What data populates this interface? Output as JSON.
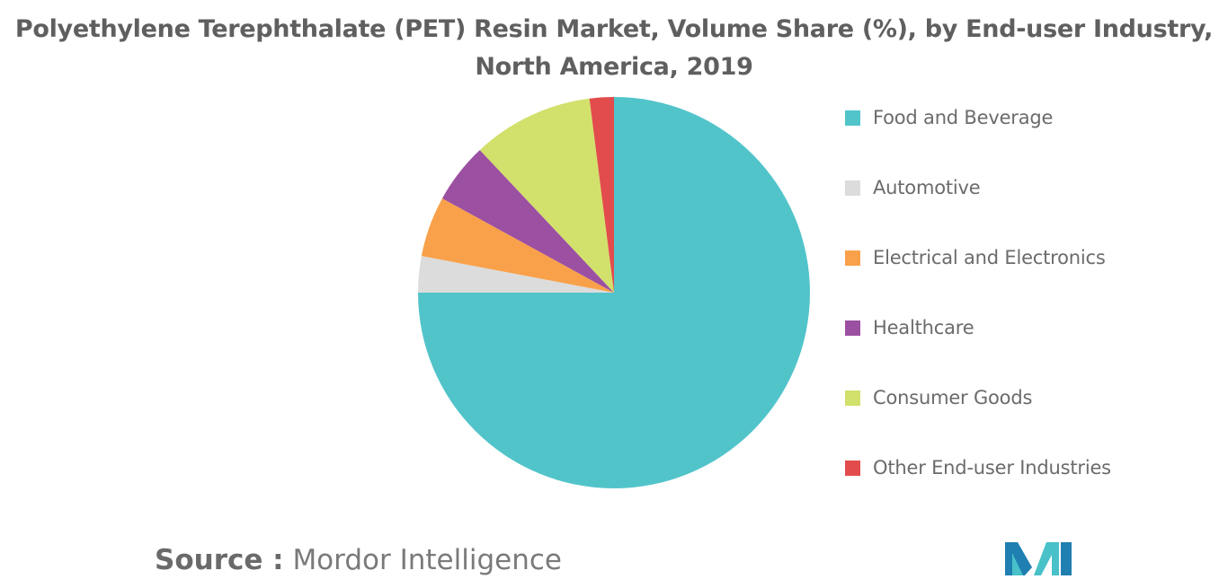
{
  "chart_data": {
    "type": "pie",
    "title_line1": "Polyethylene Terephthalate (PET) Resin Market, Volume Share (%), by End-user Industry,",
    "title_line2": "North America, 2019",
    "legend_position": "right",
    "slices": [
      {
        "label": "Food and Beverage",
        "value": 75,
        "color": "#51c4ca"
      },
      {
        "label": "Automotive",
        "value": 3,
        "color": "#dcdcdc"
      },
      {
        "label": "Electrical and Electronics",
        "value": 5,
        "color": "#f8a14a"
      },
      {
        "label": "Healthcare",
        "value": 5,
        "color": "#9b50a2"
      },
      {
        "label": "Consumer Goods",
        "value": 10,
        "color": "#d2e06c"
      },
      {
        "label": "Other End-user Industries",
        "value": 2,
        "color": "#e34c4c"
      }
    ]
  },
  "source": {
    "key": "Source :",
    "value": "Mordor Intelligence"
  },
  "logo": {
    "icon": "mordor-intelligence-logo-icon",
    "color_left": "#1f7fb0",
    "color_right": "#48c1c9"
  }
}
